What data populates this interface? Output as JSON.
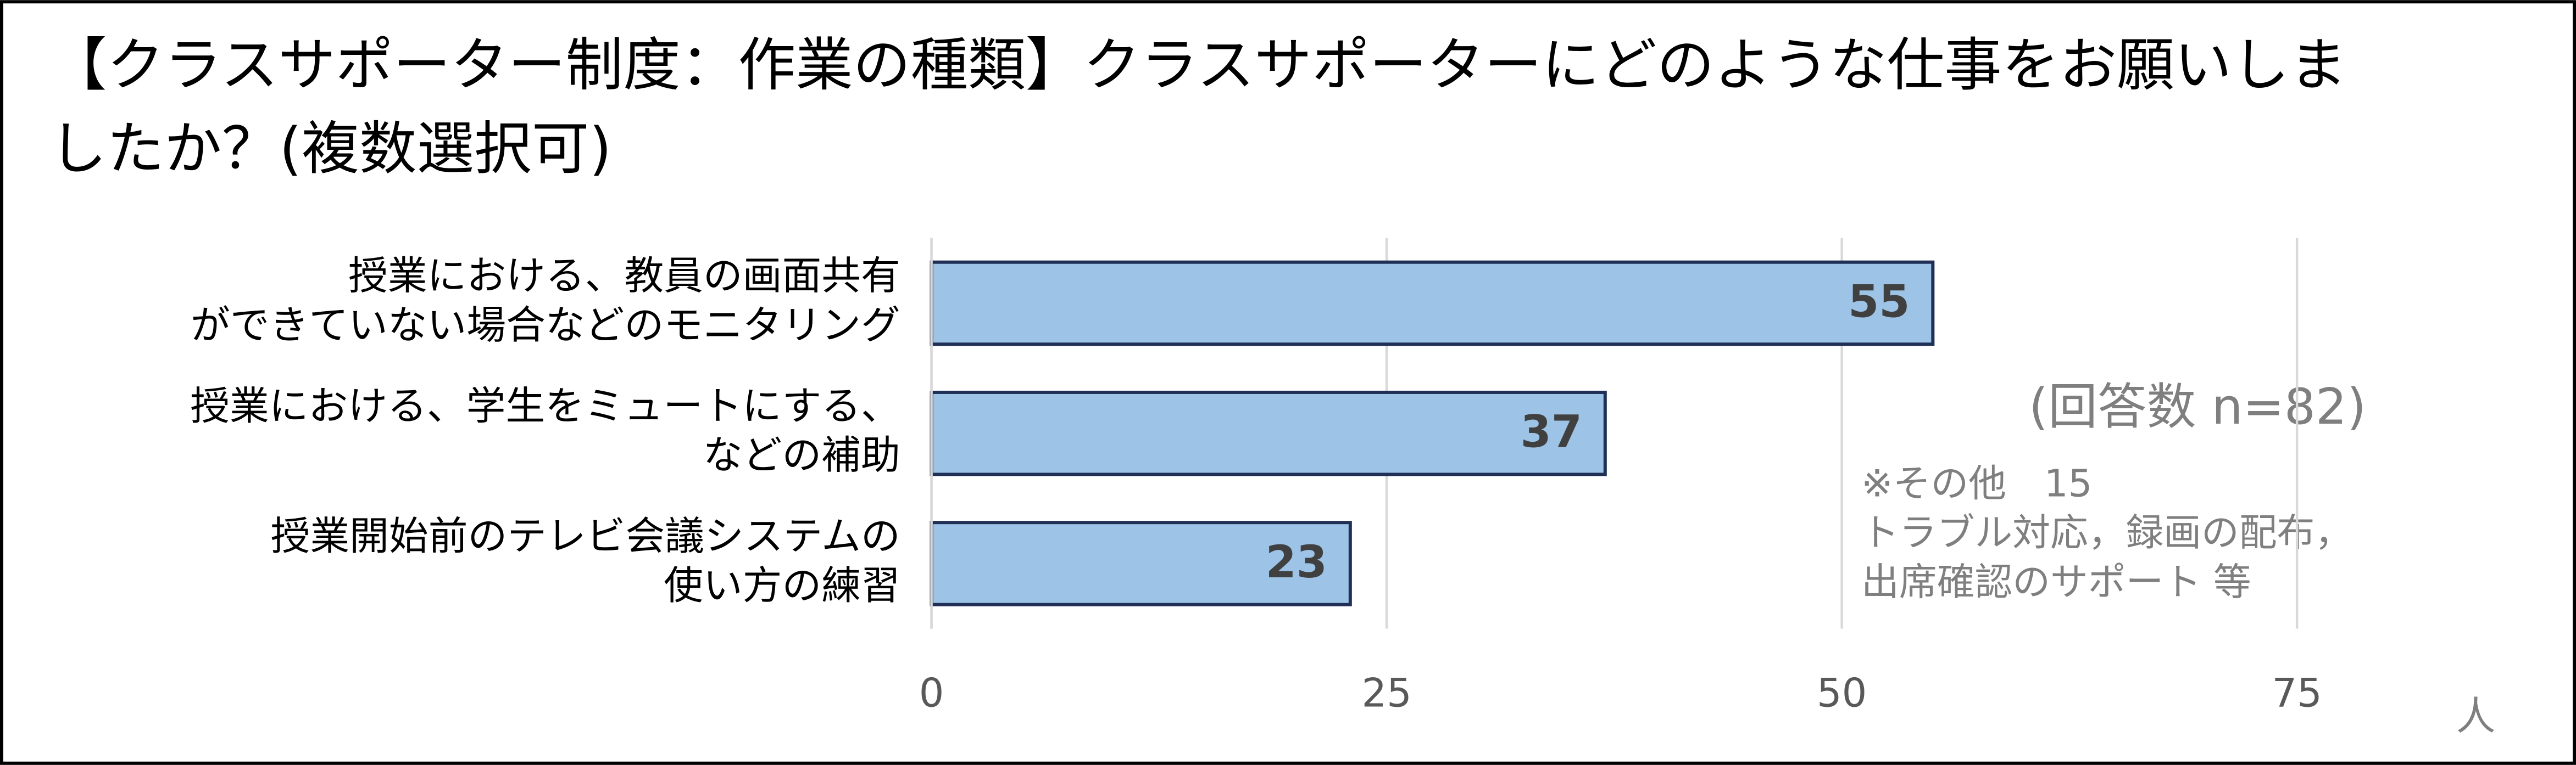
{
  "chart_data": {
    "type": "bar",
    "orientation": "horizontal",
    "title": [
      "【クラスサポーター制度：作業の種類】クラスサポーターにどのような仕事をお願いしま",
      "したか？(複数選択可)"
    ],
    "categories": [
      [
        "授業における、教員の画面共有",
        "ができていない場合などのモニタリング"
      ],
      [
        "授業における、学生をミュートにする、",
        "などの補助"
      ],
      [
        "授業開始前のテレビ会議システムの",
        "使い方の練習"
      ]
    ],
    "values": [
      55,
      37,
      23
    ],
    "color": "#9dc3e6",
    "xlim": [
      0,
      85
    ],
    "xticks": [
      0,
      25,
      50,
      75
    ],
    "xlabel": "人",
    "grid": true,
    "annotations": [
      "(回答数 n=82)",
      "※その他　15",
      "トラブル対応，録画の配布，",
      "出席確認のサポート 等"
    ]
  }
}
